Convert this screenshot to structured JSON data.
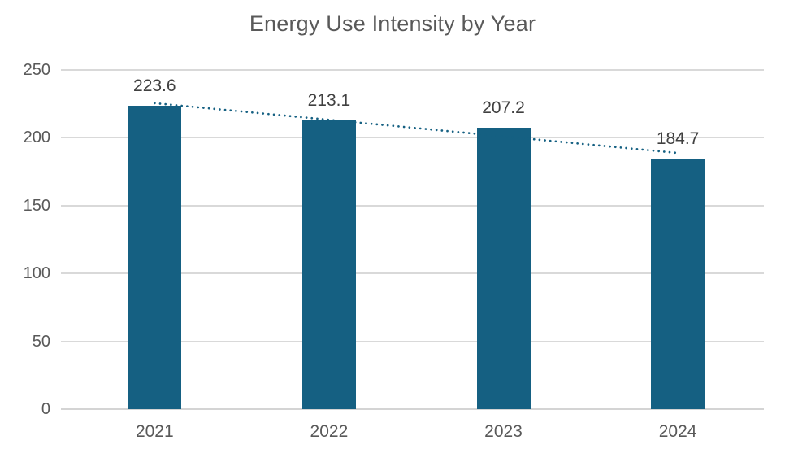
{
  "page": {
    "background": "#FFFFFF"
  },
  "chart_data": {
    "type": "bar",
    "title": "Energy Use Intensity by Year",
    "categories": [
      "2021",
      "2022",
      "2023",
      "2024"
    ],
    "values": [
      223.6,
      213.1,
      207.2,
      184.7
    ],
    "data_labels": [
      "223.6",
      "213.1",
      "207.2",
      "184.7"
    ],
    "y_ticks": [
      0,
      50,
      100,
      150,
      200,
      250
    ],
    "y_tick_labels": [
      "0",
      "50",
      "100",
      "150",
      "200",
      "250"
    ],
    "ylim": [
      0,
      250
    ],
    "xlabel": "",
    "ylabel": "",
    "grid": true,
    "legend": "none",
    "bar_color": "#156082",
    "gridline_color": "#D9D9D9",
    "baseline_color": "#D4D4D4",
    "title_color": "#595959",
    "axis_label_color": "#595959",
    "data_label_color": "#404040",
    "trendline": {
      "type": "linear",
      "style": "dotted",
      "color": "#156082",
      "start_value": 225.5,
      "end_value": 188.8
    }
  }
}
